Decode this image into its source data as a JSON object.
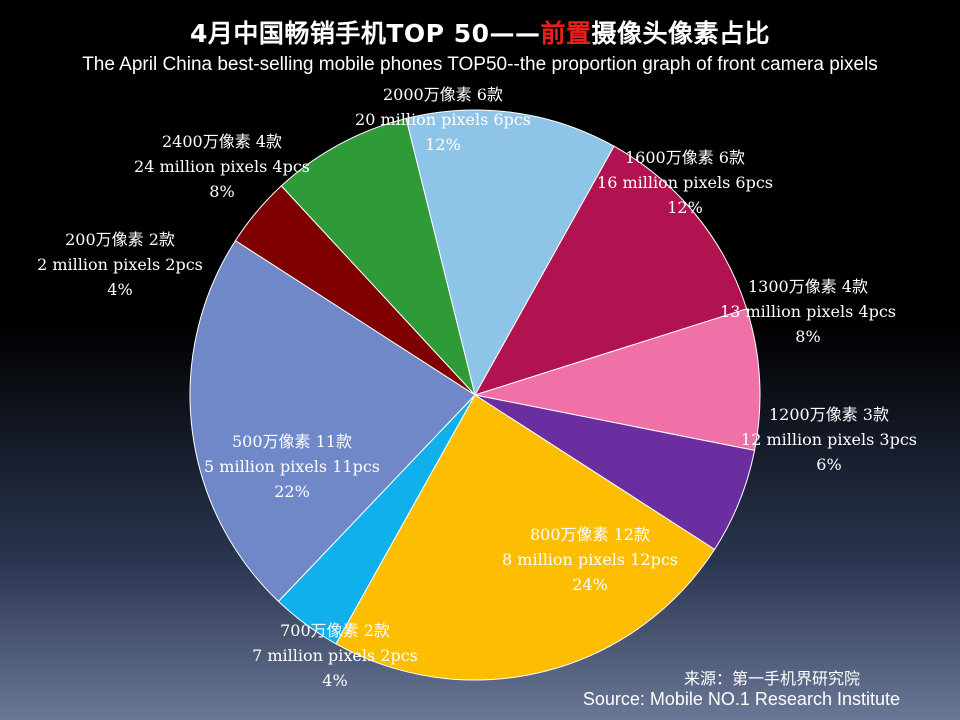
{
  "title": {
    "cn_before": "4月中国畅销手机TOP 50——",
    "cn_highlight": "前置",
    "cn_after": "摄像头像素占比",
    "en": "The April China best-selling mobile phones TOP50--the proportion graph of front camera pixels",
    "highlight_color": "#e8201c"
  },
  "source": {
    "cn": "来源：第一手机界研究院",
    "en": "Source: Mobile NO.1 Research Institute"
  },
  "chart_data": {
    "type": "pie",
    "slices": [
      {
        "label_cn": "2000万像素 6款",
        "label_en": "20 million pixels 6pcs",
        "count": 6,
        "percent": "12%",
        "color": "#8ec4e8"
      },
      {
        "label_cn": "1600万像素 6款",
        "label_en": "16 million pixels 6pcs",
        "count": 6,
        "percent": "12%",
        "color": "#b0134f"
      },
      {
        "label_cn": "1300万像素 4款",
        "label_en": "13 million pixels 4pcs",
        "count": 4,
        "percent": "8%",
        "color": "#f070a8"
      },
      {
        "label_cn": "1200万像素 3款",
        "label_en": "12 million pixels 3pcs",
        "count": 3,
        "percent": "6%",
        "color": "#6a2ea0"
      },
      {
        "label_cn": "800万像素 12款",
        "label_en": "8 million pixels 12pcs",
        "count": 12,
        "percent": "24%",
        "color": "#fdbd00"
      },
      {
        "label_cn": "700万像素 2款",
        "label_en": "7 million pixels 2pcs",
        "count": 2,
        "percent": "4%",
        "color": "#10b0ec"
      },
      {
        "label_cn": "500万像素 11款",
        "label_en": "5 million pixels 11pcs",
        "count": 11,
        "percent": "22%",
        "color": "#7088c8"
      },
      {
        "label_cn": "200万像素 2款",
        "label_en": "2 million pixels 2pcs",
        "count": 2,
        "percent": "4%",
        "color": "#7e0000"
      },
      {
        "label_cn": "2400万像素 4款",
        "label_en": "24 million pixels 4pcs",
        "count": 4,
        "percent": "8%",
        "color": "#2e9a38"
      }
    ]
  }
}
